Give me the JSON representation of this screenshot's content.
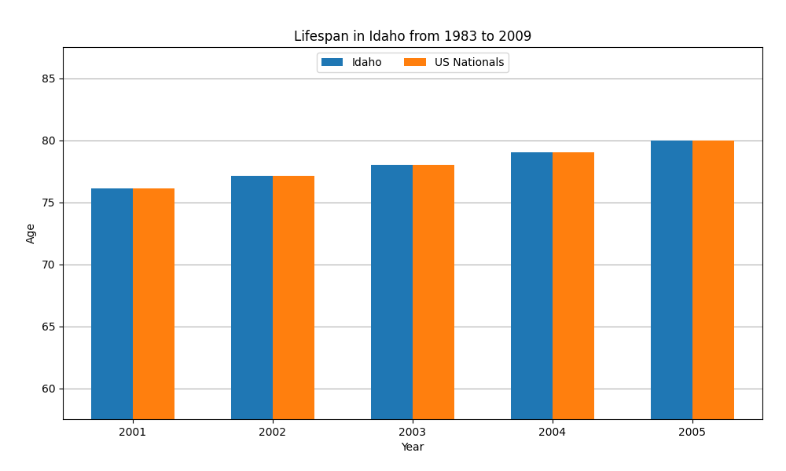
{
  "chart_data": {
    "type": "bar",
    "title": "Lifespan in Idaho from 1983 to 2009",
    "x_label": "Year",
    "y_label": "Age",
    "categories": [
      2001,
      2002,
      2003,
      2004,
      2005
    ],
    "series": [
      {
        "name": "Idaho",
        "values": [
          76.1,
          77.1,
          78.0,
          79.0,
          80.0
        ]
      },
      {
        "name": "US Nationals",
        "values": [
          76.1,
          77.1,
          78.0,
          79.0,
          80.0
        ]
      }
    ],
    "ylim": [
      57.5,
      87.5
    ],
    "yticks": [
      60,
      65,
      70,
      75,
      80,
      85
    ],
    "grid": true,
    "legend": "upper center"
  }
}
